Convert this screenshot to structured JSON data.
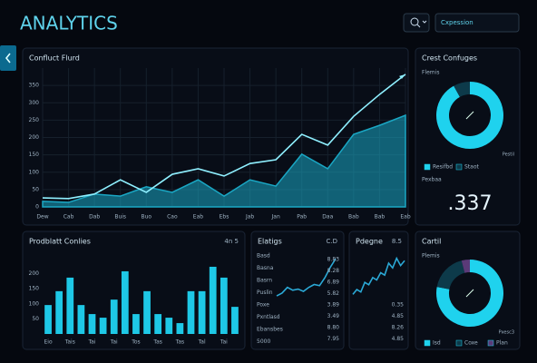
{
  "header": {
    "title": "ANALYTICS",
    "search_placeholder": "Cxpession"
  },
  "chart_data": [
    {
      "type": "line",
      "title": "Confluct Flurd",
      "categories": [
        "Dew",
        "Cab",
        "Dab",
        "Buis",
        "Buo",
        "Cao",
        "Eab",
        "Ebs",
        "Jab",
        "Jan",
        "Pab",
        "Daa",
        "Bab",
        "Bab",
        "Eab"
      ],
      "series": [
        {
          "color": "#8ff0ff",
          "values": [
            26,
            24,
            37,
            78,
            42,
            94,
            110,
            89,
            125,
            136,
            209,
            178,
            261,
            324,
            382
          ]
        },
        {
          "color": "#1aa7c4",
          "area": true,
          "values": [
            16,
            13,
            37,
            31,
            58,
            42,
            78,
            31,
            78,
            60,
            152,
            110,
            209,
            235,
            264
          ]
        }
      ],
      "ylim": [
        0,
        400
      ],
      "yticks": [
        0,
        50,
        100,
        150,
        200,
        250,
        300,
        350
      ],
      "grid": true
    },
    {
      "type": "pie",
      "title": "Crest Confuges",
      "subtitle": "Flemis",
      "side_label": "Pestil",
      "categories": [
        "Resifbd",
        "Staot"
      ],
      "values": [
        92,
        8
      ],
      "colors": [
        "#1fd2ee",
        "#0d3a4a"
      ],
      "note_label": "Pexbaa",
      "big_value": ".337"
    },
    {
      "type": "bar",
      "title": "Prodblatt Conlies",
      "subtitle": "4n 5",
      "color": "#1ec8e6",
      "categories": [
        "Eio",
        null,
        "Tais",
        null,
        "Tai",
        null,
        "Tai",
        null,
        "Tos",
        null,
        "Tas",
        null,
        "Tas",
        null,
        "Tal",
        null,
        "Tai",
        null
      ],
      "values": [
        96,
        142,
        187,
        96,
        66,
        54,
        114,
        208,
        66,
        142,
        66,
        54,
        36,
        142,
        142,
        223,
        187,
        90
      ],
      "ylim": [
        0,
        250
      ],
      "yticks": [
        50,
        100,
        150,
        200
      ]
    },
    {
      "type": "line",
      "title": "Elatigs",
      "subtitle": "C.D",
      "color": "#2ba9d6",
      "values": [
        30,
        35,
        45,
        40,
        42,
        38,
        45,
        50,
        48,
        62,
        80,
        95
      ],
      "ylim": [
        0,
        100
      ],
      "row_labels": [
        "Basd",
        "Basna",
        "Basrn",
        "Puslin",
        "Poxe",
        "Pxntlasd",
        "Ebansbes",
        "5000"
      ],
      "row_values": [
        "8.83",
        "8.28",
        "6.89",
        "5.82",
        "3.89",
        "3.49",
        "8.80",
        "7.95"
      ]
    },
    {
      "type": "line",
      "title": "Pdegne",
      "subtitle": "8.5",
      "color": "#2ba9d6",
      "values": [
        20,
        30,
        25,
        45,
        40,
        55,
        50,
        65,
        60,
        85,
        75,
        95,
        80,
        90
      ],
      "ylim": [
        0,
        100
      ],
      "row_values": [
        "0.35",
        "4.85",
        "8.26",
        "4.85"
      ]
    },
    {
      "type": "pie",
      "title": "Cartil",
      "subtitle": "Plemis",
      "side_label": "Pxesc3",
      "categories": [
        "Isd",
        "Coxe",
        "Plan"
      ],
      "values": [
        78,
        18,
        4
      ],
      "colors": [
        "#1fd2ee",
        "#0d3a4a",
        "#5a3a78"
      ]
    }
  ]
}
